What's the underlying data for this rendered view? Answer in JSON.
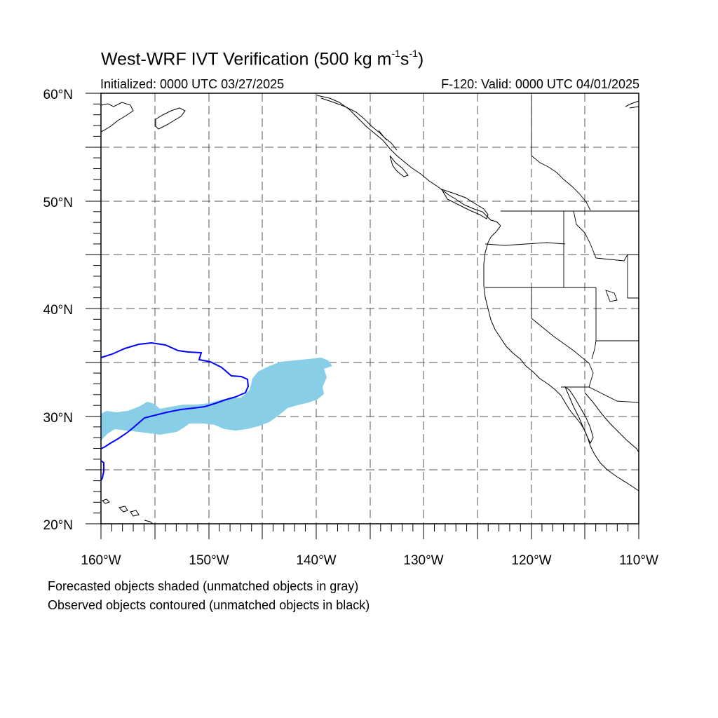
{
  "title": {
    "main": "West-WRF IVT Verification (500 kg m",
    "exp1": "-1",
    "mid": "s",
    "exp2": "-1",
    "end": ")"
  },
  "subtitle_left": "Initialized: 0000 UTC 03/27/2025",
  "subtitle_right": "F-120: Valid: 0000 UTC 04/01/2025",
  "notes": [
    "Forecasted objects shaded (unmatched objects in gray)",
    "Observed objects contoured (unmatched objects in black)"
  ],
  "map": {
    "lon_range": [
      -160,
      -110
    ],
    "lat_range": [
      20,
      60
    ],
    "lon_labels": [
      "160°W",
      "150°W",
      "140°W",
      "130°W",
      "120°W",
      "110°W"
    ],
    "lat_labels": [
      "60°N",
      "50°N",
      "40°N",
      "30°N",
      "20°N"
    ],
    "grid_interval_deg": 5,
    "grid_style": "dashed",
    "colors": {
      "forecast_object": "#87CEE6",
      "observed_contour": "#0000FF",
      "coastline": "#000000",
      "grid": "#555555"
    }
  }
}
